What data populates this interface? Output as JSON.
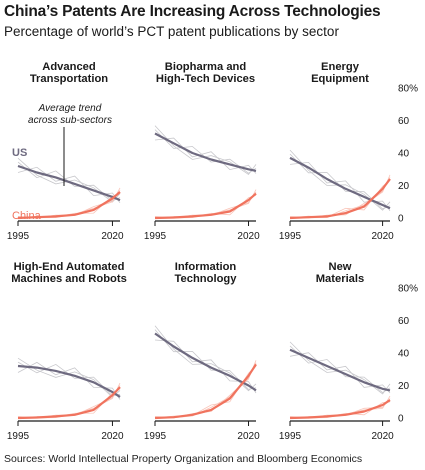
{
  "header": {
    "title": "China’s Patents Are Increasing Across Technologies",
    "subtitle": "Percentage of world’s PCT patent publications by sector"
  },
  "source": "Sources: World Intellectual Property Organization and Bloomberg Economics",
  "colors": {
    "us": "#6e6a80",
    "china": "#f0735e",
    "faint_us": "#c8c8cc",
    "faint_china": "#f9c4b8",
    "axis": "#1a1a1a"
  },
  "annotations": {
    "avg_trend_line1": "Average trend",
    "avg_trend_line2": "across sub-sectors"
  },
  "chart_data": [
    {
      "type": "line",
      "title": [
        "Advanced",
        "Transportation"
      ],
      "x": [
        1995,
        2000,
        2005,
        2010,
        2015,
        2020,
        2022
      ],
      "series": [
        {
          "name": "US",
          "values": [
            32,
            28,
            25,
            21,
            17,
            13,
            11
          ]
        },
        {
          "name": "China",
          "values": [
            0,
            0.5,
            1,
            2,
            5,
            12,
            16
          ]
        }
      ],
      "x_ticks": [
        "1995",
        "2020"
      ],
      "ylim": [
        0,
        80
      ]
    },
    {
      "type": "line",
      "title": [
        "Biopharma and",
        "High-Tech Devices"
      ],
      "x": [
        1995,
        2000,
        2005,
        2010,
        2015,
        2020,
        2022
      ],
      "series": [
        {
          "name": "",
          "values": [
            52,
            46,
            40,
            36,
            33,
            30,
            29
          ]
        },
        {
          "name": "",
          "values": [
            0,
            0.3,
            1,
            2,
            4,
            11,
            15
          ]
        }
      ],
      "x_ticks": [
        "1995",
        "2020"
      ],
      "ylim": [
        0,
        80
      ]
    },
    {
      "type": "line",
      "title": [
        "Energy",
        "Equipment"
      ],
      "x": [
        1995,
        2000,
        2005,
        2010,
        2015,
        2020,
        2022
      ],
      "series": [
        {
          "name": "",
          "values": [
            37,
            31,
            24,
            18,
            13,
            8,
            6
          ]
        },
        {
          "name": "",
          "values": [
            0,
            0.5,
            1,
            3,
            7,
            18,
            24
          ]
        }
      ],
      "x_ticks": [
        "1995",
        "2020"
      ],
      "y_ticks": [
        "0",
        "20",
        "40",
        "60",
        "80%"
      ],
      "ylim": [
        0,
        80
      ]
    },
    {
      "type": "line",
      "title": [
        "High-End Automated",
        "Machines and Robots"
      ],
      "x": [
        1995,
        2000,
        2005,
        2010,
        2015,
        2020,
        2022
      ],
      "series": [
        {
          "name": "",
          "values": [
            32,
            31,
            29,
            26,
            22,
            16,
            13
          ]
        },
        {
          "name": "",
          "values": [
            0,
            0.3,
            1,
            2,
            5,
            14,
            19
          ]
        }
      ],
      "x_ticks": [
        "1995",
        "2020"
      ],
      "ylim": [
        0,
        80
      ]
    },
    {
      "type": "line",
      "title": [
        "Information",
        "Technology"
      ],
      "x": [
        1995,
        2000,
        2005,
        2010,
        2015,
        2020,
        2022
      ],
      "series": [
        {
          "name": "",
          "values": [
            52,
            44,
            37,
            31,
            26,
            20,
            17
          ]
        },
        {
          "name": "",
          "values": [
            0,
            0.5,
            2,
            5,
            12,
            26,
            33
          ]
        }
      ],
      "x_ticks": [
        "1995",
        "2020"
      ],
      "ylim": [
        0,
        80
      ]
    },
    {
      "type": "line",
      "title": [
        "New",
        "Materials"
      ],
      "x": [
        1995,
        2000,
        2005,
        2010,
        2015,
        2020,
        2022
      ],
      "series": [
        {
          "name": "",
          "values": [
            42,
            37,
            32,
            27,
            22,
            18,
            17
          ]
        },
        {
          "name": "",
          "values": [
            0,
            0.3,
            1,
            2,
            4,
            8,
            11
          ]
        }
      ],
      "x_ticks": [
        "1995",
        "2020"
      ],
      "y_ticks": [
        "0",
        "20",
        "40",
        "60",
        "80%"
      ],
      "ylim": [
        0,
        80
      ]
    }
  ]
}
